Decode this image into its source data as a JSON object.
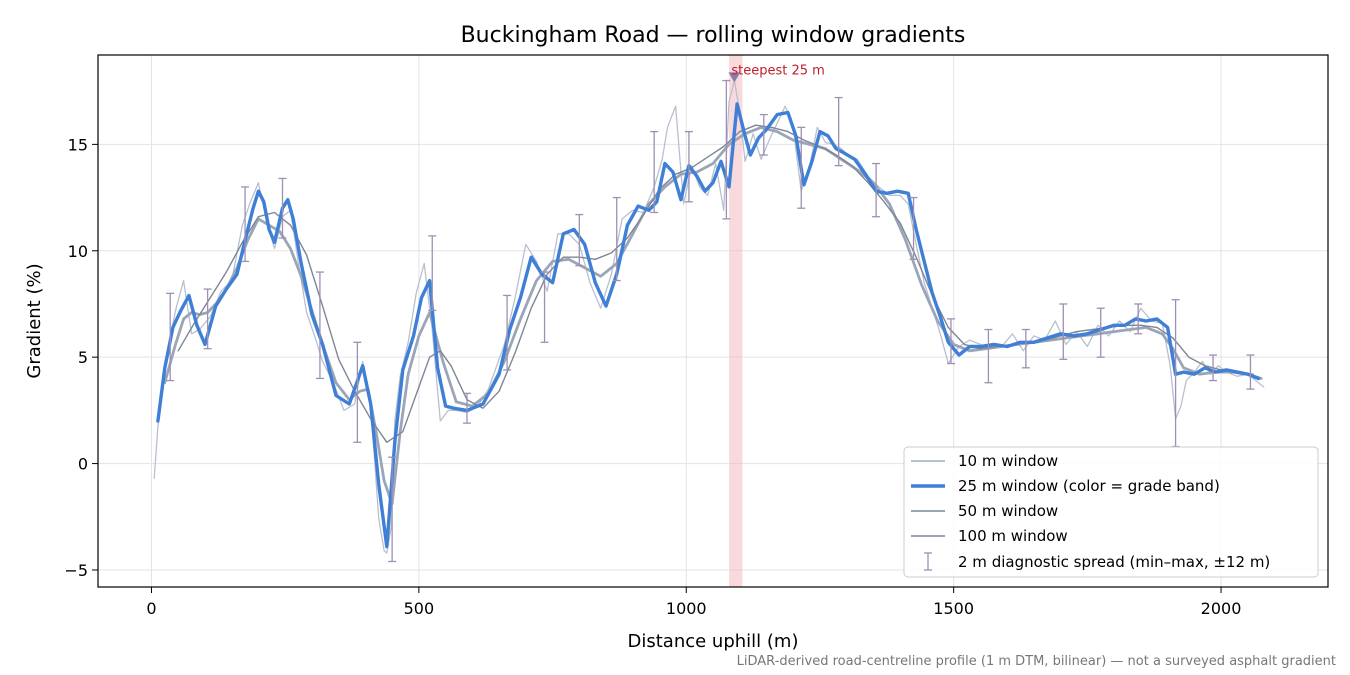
{
  "chart_data": {
    "type": "line",
    "title": "Buckingham Road — rolling window gradients",
    "xlabel": "Distance uphill (m)",
    "ylabel": "Gradient (%)",
    "xlim": [
      -100,
      2200
    ],
    "ylim": [
      -5.8,
      19.2
    ],
    "xticks": [
      "0",
      "500",
      "1000",
      "1500",
      "2000"
    ],
    "yticks": [
      "−5",
      "0",
      "5",
      "10",
      "15"
    ],
    "grid": true,
    "legend_position": "lower-right",
    "footnote": "LiDAR-derived road-centreline profile (1 m DTM, bilinear) — not a surveyed asphalt gradient",
    "steepest_window": {
      "label": "steepest 25 m",
      "x_range": [
        1080,
        1105
      ],
      "marker_x": 1090,
      "marker_y": 18.1
    },
    "series": [
      {
        "name": "10 m window",
        "color": "#b8c0d0",
        "x": [
          5,
          15,
          30,
          45,
          60,
          75,
          90,
          110,
          130,
          150,
          170,
          185,
          200,
          215,
          230,
          245,
          260,
          275,
          290,
          305,
          320,
          340,
          360,
          380,
          395,
          410,
          425,
          435,
          440,
          448,
          455,
          465,
          480,
          495,
          510,
          525,
          540,
          555,
          570,
          590,
          610,
          630,
          660,
          680,
          700,
          720,
          740,
          760,
          780,
          800,
          820,
          840,
          860,
          880,
          900,
          920,
          940,
          955,
          965,
          980,
          995,
          1010,
          1025,
          1040,
          1055,
          1070,
          1080,
          1090,
          1100,
          1110,
          1125,
          1140,
          1155,
          1170,
          1185,
          1200,
          1215,
          1230,
          1245,
          1260,
          1275,
          1290,
          1305,
          1320,
          1340,
          1360,
          1380,
          1400,
          1415,
          1430,
          1445,
          1460,
          1475,
          1490,
          1510,
          1530,
          1550,
          1570,
          1590,
          1610,
          1630,
          1650,
          1670,
          1690,
          1710,
          1730,
          1750,
          1770,
          1790,
          1810,
          1830,
          1850,
          1870,
          1890,
          1905,
          1915,
          1925,
          1935,
          1950,
          1965,
          1980,
          1995,
          2010,
          2030,
          2050,
          2065,
          2080
        ],
        "y": [
          -0.7,
          2.8,
          5.2,
          7.2,
          8.6,
          6.1,
          6.3,
          6.9,
          8.1,
          8.6,
          11.2,
          12.3,
          13.2,
          11.4,
          10.1,
          11.6,
          11.9,
          9.4,
          7.1,
          6.0,
          4.8,
          3.8,
          2.5,
          2.8,
          4.8,
          2.7,
          -2.6,
          -4.1,
          -4.2,
          -3.0,
          2.0,
          4.1,
          5.7,
          8.0,
          9.4,
          6.3,
          2.0,
          2.5,
          2.5,
          2.4,
          2.7,
          3.5,
          5.6,
          7.8,
          10.3,
          9.5,
          8.1,
          10.8,
          10.8,
          10.3,
          8.5,
          7.3,
          8.9,
          11.5,
          11.9,
          11.8,
          13.0,
          14.3,
          15.8,
          16.8,
          12.2,
          14.0,
          13.0,
          12.6,
          14.1,
          11.9,
          17.0,
          18.0,
          16.5,
          14.2,
          15.5,
          14.3,
          15.2,
          16.0,
          16.8,
          15.8,
          12.8,
          13.9,
          15.8,
          15.1,
          15.0,
          14.8,
          14.4,
          14.3,
          13.5,
          13.0,
          12.6,
          12.6,
          12.2,
          10.3,
          8.5,
          7.3,
          6.1,
          4.7,
          5.5,
          5.8,
          5.6,
          5.4,
          5.5,
          6.1,
          5.3,
          6.0,
          5.8,
          6.7,
          5.6,
          6.2,
          5.5,
          6.5,
          6.0,
          6.7,
          6.2,
          7.3,
          6.7,
          6.6,
          4.6,
          2.1,
          2.7,
          3.9,
          4.3,
          4.8,
          4.2,
          4.6,
          4.3,
          4.1,
          4.2,
          3.9,
          3.6
        ]
      },
      {
        "name": "25 m window (color = grade band)",
        "color": "#3f7fd6",
        "x": [
          12,
          25,
          40,
          55,
          70,
          85,
          100,
          120,
          140,
          160,
          175,
          190,
          200,
          210,
          220,
          230,
          245,
          255,
          265,
          280,
          300,
          320,
          345,
          370,
          395,
          410,
          425,
          440,
          455,
          470,
          490,
          505,
          520,
          535,
          550,
          565,
          590,
          620,
          650,
          670,
          690,
          710,
          730,
          750,
          770,
          790,
          810,
          830,
          850,
          870,
          890,
          910,
          930,
          945,
          960,
          975,
          990,
          1005,
          1020,
          1035,
          1050,
          1065,
          1080,
          1095,
          1110,
          1120,
          1135,
          1150,
          1170,
          1190,
          1205,
          1220,
          1235,
          1250,
          1265,
          1280,
          1295,
          1315,
          1335,
          1355,
          1375,
          1395,
          1415,
          1430,
          1445,
          1460,
          1475,
          1490,
          1510,
          1530,
          1550,
          1575,
          1600,
          1625,
          1650,
          1675,
          1700,
          1725,
          1750,
          1775,
          1800,
          1820,
          1840,
          1860,
          1880,
          1900,
          1915,
          1930,
          1950,
          1970,
          1990,
          2010,
          2030,
          2050,
          2070
        ],
        "y": [
          2.0,
          4.5,
          6.4,
          7.2,
          7.9,
          6.5,
          5.6,
          7.4,
          8.2,
          8.9,
          10.5,
          12.0,
          12.8,
          12.3,
          11.0,
          10.4,
          12.0,
          12.4,
          11.5,
          9.4,
          7.0,
          5.6,
          3.2,
          2.8,
          4.6,
          2.8,
          -1.0,
          -3.9,
          1.0,
          4.4,
          6.0,
          7.8,
          8.6,
          4.5,
          2.7,
          2.6,
          2.5,
          2.8,
          4.2,
          6.3,
          7.8,
          9.7,
          8.9,
          8.5,
          10.8,
          11.0,
          10.3,
          8.5,
          7.4,
          8.9,
          11.2,
          12.1,
          11.9,
          12.3,
          14.1,
          13.7,
          12.4,
          14.0,
          13.5,
          12.8,
          13.2,
          14.2,
          13.0,
          16.9,
          15.4,
          14.5,
          15.3,
          15.7,
          16.4,
          16.5,
          15.4,
          13.1,
          14.2,
          15.6,
          15.4,
          14.8,
          14.6,
          14.3,
          13.6,
          12.8,
          12.7,
          12.8,
          12.7,
          11.0,
          9.5,
          8.0,
          6.9,
          5.7,
          5.1,
          5.5,
          5.5,
          5.6,
          5.5,
          5.7,
          5.7,
          5.9,
          6.1,
          6.0,
          6.1,
          6.3,
          6.5,
          6.5,
          6.8,
          6.7,
          6.8,
          6.4,
          4.2,
          4.3,
          4.2,
          4.5,
          4.3,
          4.4,
          4.3,
          4.2,
          4.0
        ]
      },
      {
        "name": "50 m window",
        "color": "#9aa6b8",
        "x": [
          25,
          45,
          60,
          75,
          90,
          105,
          120,
          140,
          160,
          180,
          200,
          220,
          240,
          260,
          280,
          300,
          320,
          345,
          370,
          390,
          405,
          420,
          435,
          450,
          465,
          480,
          500,
          520,
          545,
          570,
          600,
          630,
          660,
          690,
          720,
          750,
          780,
          810,
          840,
          870,
          900,
          930,
          960,
          990,
          1020,
          1050,
          1080,
          1110,
          1140,
          1170,
          1200,
          1230,
          1260,
          1290,
          1320,
          1350,
          1380,
          1410,
          1440,
          1470,
          1500,
          1530,
          1560,
          1590,
          1620,
          1650,
          1680,
          1710,
          1740,
          1770,
          1800,
          1830,
          1860,
          1890,
          1910,
          1930,
          1960,
          1990,
          2020,
          2050,
          2075
        ],
        "y": [
          3.8,
          5.6,
          6.8,
          7.1,
          7.0,
          7.1,
          7.5,
          8.2,
          9.2,
          10.5,
          11.5,
          11.2,
          10.9,
          10.1,
          8.8,
          7.2,
          5.6,
          3.8,
          3.0,
          3.4,
          3.5,
          1.5,
          -0.8,
          -1.9,
          1.5,
          4.2,
          6.0,
          7.1,
          4.8,
          2.9,
          2.7,
          3.3,
          4.8,
          6.8,
          8.6,
          9.5,
          9.6,
          9.2,
          8.8,
          9.4,
          10.8,
          12.2,
          13.0,
          13.6,
          13.7,
          14.1,
          15.0,
          15.5,
          15.8,
          15.6,
          15.2,
          15.0,
          14.8,
          14.3,
          13.8,
          13.2,
          12.2,
          10.5,
          8.4,
          6.7,
          5.6,
          5.3,
          5.4,
          5.5,
          5.6,
          5.7,
          5.8,
          5.9,
          6.0,
          6.1,
          6.2,
          6.3,
          6.4,
          6.1,
          5.4,
          4.5,
          4.2,
          4.3,
          4.3,
          4.2,
          4.0
        ]
      },
      {
        "name": "100 m window",
        "color": "#7d8696",
        "x": [
          50,
          80,
          110,
          140,
          170,
          200,
          230,
          260,
          290,
          320,
          350,
          380,
          410,
          440,
          470,
          500,
          520,
          540,
          560,
          590,
          620,
          650,
          680,
          710,
          740,
          770,
          800,
          830,
          860,
          890,
          920,
          950,
          980,
          1010,
          1040,
          1070,
          1100,
          1130,
          1160,
          1190,
          1220,
          1250,
          1280,
          1310,
          1340,
          1370,
          1400,
          1430,
          1460,
          1490,
          1520,
          1550,
          1580,
          1610,
          1640,
          1670,
          1700,
          1730,
          1760,
          1790,
          1820,
          1850,
          1880,
          1910,
          1940,
          1970,
          2000,
          2030,
          2060
        ],
        "y": [
          5.3,
          6.6,
          7.8,
          9.0,
          10.4,
          11.6,
          11.8,
          11.2,
          9.8,
          7.4,
          4.9,
          3.4,
          2.1,
          1.0,
          1.5,
          3.6,
          5.0,
          5.3,
          4.6,
          3.0,
          2.6,
          3.4,
          5.2,
          7.3,
          8.9,
          9.7,
          9.7,
          9.6,
          9.9,
          10.6,
          11.7,
          12.9,
          13.6,
          13.9,
          14.4,
          14.9,
          15.6,
          15.9,
          15.8,
          15.6,
          15.2,
          14.9,
          14.5,
          14.0,
          13.2,
          12.3,
          11.3,
          9.7,
          7.9,
          6.4,
          5.6,
          5.4,
          5.5,
          5.6,
          5.7,
          5.8,
          6.0,
          6.2,
          6.3,
          6.4,
          6.5,
          6.5,
          6.4,
          5.9,
          5.0,
          4.6,
          4.4,
          4.3,
          4.2
        ]
      }
    ],
    "error_bars": {
      "name": "2 m diagnostic spread (min–max, ±12 m)",
      "color": "#9e8fb5",
      "points": [
        {
          "x": 35,
          "low": 3.9,
          "high": 8.0
        },
        {
          "x": 105,
          "low": 5.4,
          "high": 8.2
        },
        {
          "x": 175,
          "low": 9.5,
          "high": 13.0
        },
        {
          "x": 245,
          "low": 10.6,
          "high": 13.4
        },
        {
          "x": 315,
          "low": 4.0,
          "high": 9.0
        },
        {
          "x": 385,
          "low": 1.0,
          "high": 5.7
        },
        {
          "x": 450,
          "low": -4.6,
          "high": 0.3
        },
        {
          "x": 525,
          "low": 7.2,
          "high": 10.7
        },
        {
          "x": 590,
          "low": 1.9,
          "high": 3.3
        },
        {
          "x": 665,
          "low": 4.4,
          "high": 7.9
        },
        {
          "x": 735,
          "low": 5.7,
          "high": 9.0
        },
        {
          "x": 800,
          "low": 9.3,
          "high": 11.7
        },
        {
          "x": 870,
          "low": 8.6,
          "high": 12.5
        },
        {
          "x": 940,
          "low": 11.8,
          "high": 15.6
        },
        {
          "x": 1005,
          "low": 12.3,
          "high": 15.6
        },
        {
          "x": 1075,
          "low": 11.5,
          "high": 18.0
        },
        {
          "x": 1145,
          "low": 14.5,
          "high": 16.4
        },
        {
          "x": 1215,
          "low": 12.0,
          "high": 15.8
        },
        {
          "x": 1285,
          "low": 14.0,
          "high": 17.2
        },
        {
          "x": 1355,
          "low": 11.6,
          "high": 14.1
        },
        {
          "x": 1425,
          "low": 9.6,
          "high": 12.5
        },
        {
          "x": 1495,
          "low": 4.7,
          "high": 6.8
        },
        {
          "x": 1565,
          "low": 3.8,
          "high": 6.3
        },
        {
          "x": 1635,
          "low": 4.5,
          "high": 6.3
        },
        {
          "x": 1705,
          "low": 4.9,
          "high": 7.5
        },
        {
          "x": 1775,
          "low": 5.0,
          "high": 7.3
        },
        {
          "x": 1845,
          "low": 6.1,
          "high": 7.5
        },
        {
          "x": 1915,
          "low": 0.8,
          "high": 7.7
        },
        {
          "x": 1985,
          "low": 3.9,
          "high": 5.1
        },
        {
          "x": 2055,
          "low": 3.5,
          "high": 5.1
        }
      ]
    }
  }
}
